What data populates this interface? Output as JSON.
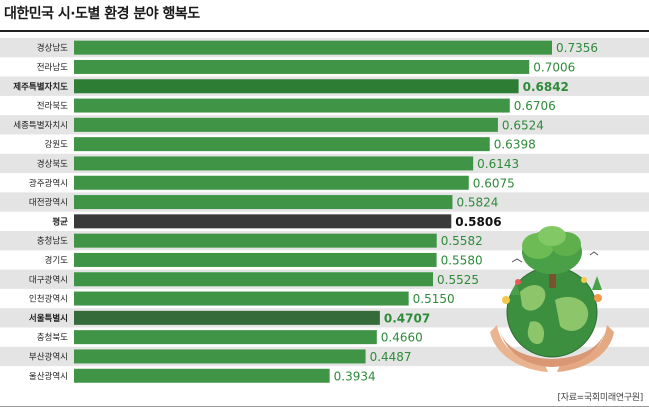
{
  "title": "대한민국 시·도별 환경 분야 행복도",
  "source": "[자료=국회미래연구원]",
  "colors": {
    "bar": "#3f9545",
    "bar_highlight": "#2e7d35",
    "bar_seoul": "#356b3a",
    "bar_average": "#3a3a3a",
    "stripe": "#e4e4e4",
    "value_text": "#2e8b3a",
    "value_text_average": "#111111"
  },
  "illustration": "globe-with-tree-in-hands",
  "chart_data": {
    "type": "bar",
    "orientation": "horizontal",
    "title": "대한민국 시·도별 환경 분야 행복도",
    "categories": [
      "경상남도",
      "전라남도",
      "제주특별자치도",
      "전라북도",
      "세종특별자치시",
      "강원도",
      "경상북도",
      "광주광역시",
      "대전광역시",
      "평균",
      "충청남도",
      "경기도",
      "대구광역시",
      "인천광역시",
      "서울특별시",
      "충청북도",
      "부산광역시",
      "울산광역시"
    ],
    "values": [
      0.7356,
      0.7006,
      0.6842,
      0.6706,
      0.6524,
      0.6398,
      0.6143,
      0.6075,
      0.5824,
      0.5806,
      0.5582,
      0.558,
      0.5525,
      0.515,
      0.4707,
      0.466,
      0.4487,
      0.3934
    ],
    "value_labels": [
      "0.7356",
      "0.7006",
      "0.6842",
      "0.6706",
      "0.6524",
      "0.6398",
      "0.6143",
      "0.6075",
      "0.5824",
      "0.5806",
      "0.5582",
      "0.5580",
      "0.5525",
      "0.5150",
      "0.4707",
      "0.4660",
      "0.4487",
      "0.3934"
    ],
    "highlight": [
      "제주특별자치도",
      "평균",
      "서울특별시"
    ],
    "average_category": "평균",
    "grid": false,
    "legend": "none"
  }
}
